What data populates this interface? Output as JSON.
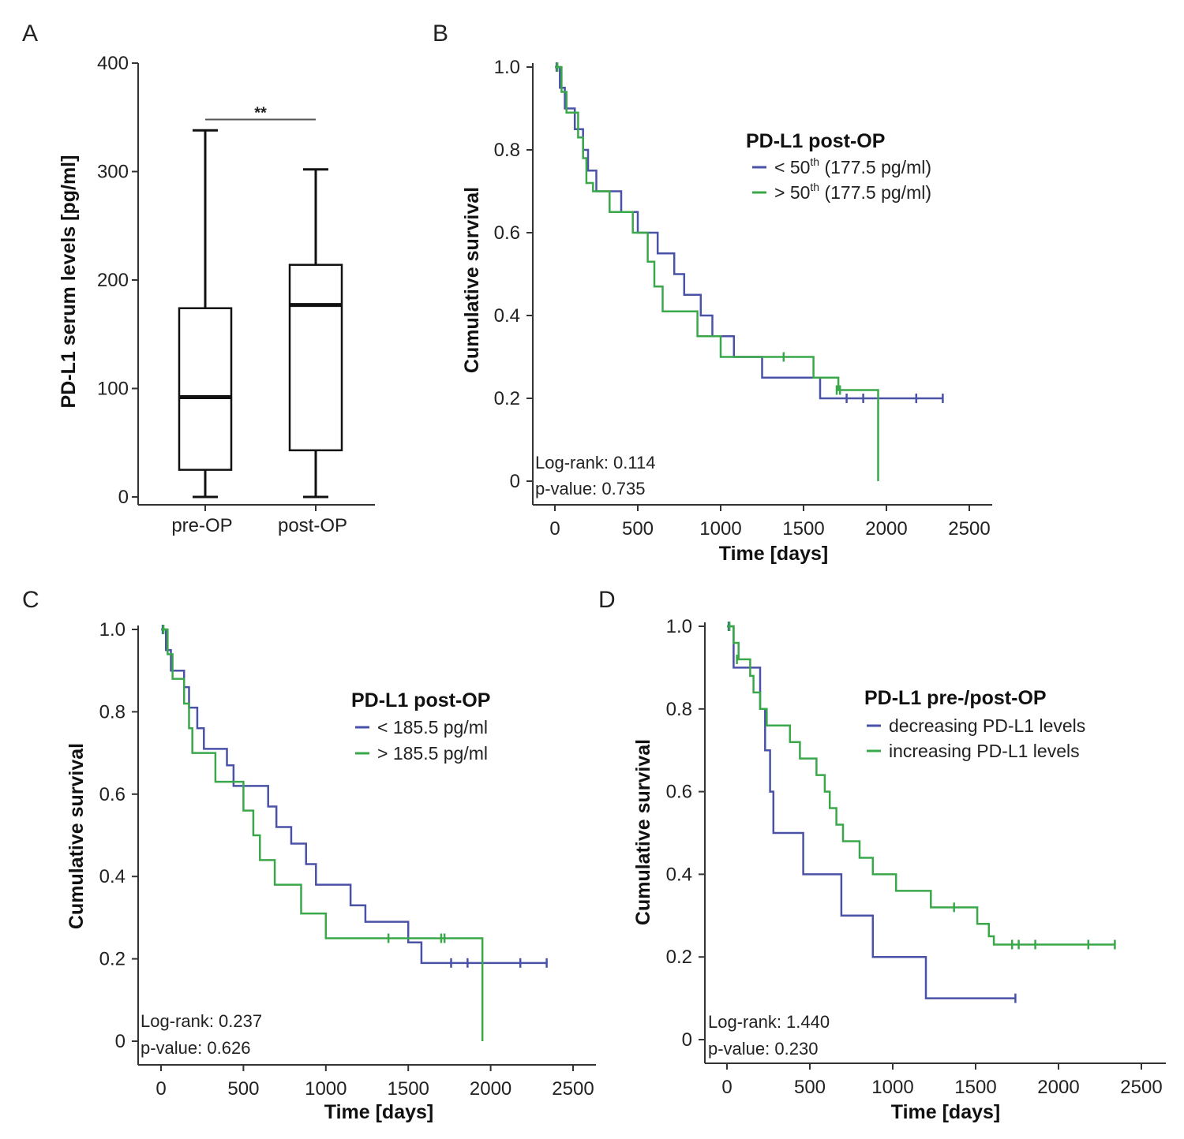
{
  "colors": {
    "blue": "#4a52a8",
    "green": "#3aa84a",
    "axis": "#333333",
    "box": "#111111"
  },
  "chart_data": [
    {
      "id": "A",
      "type": "box",
      "panel_label": "A",
      "ylabel": "PD-L1 serum levels [pg/ml]",
      "ylim": [
        0,
        400
      ],
      "yticks": [
        "0",
        "100",
        "200",
        "300",
        "400"
      ],
      "categories": [
        "pre-OP",
        "post-OP"
      ],
      "boxes": [
        {
          "name": "pre-OP",
          "min": 0,
          "q1": 25,
          "median": 92,
          "q3": 174,
          "max": 338
        },
        {
          "name": "post-OP",
          "min": 0,
          "q1": 43,
          "median": 177,
          "q3": 214,
          "max": 302
        }
      ],
      "significance": {
        "label": "**",
        "y": 348
      }
    },
    {
      "id": "B",
      "type": "line",
      "panel_label": "B",
      "xlabel": "Time [days]",
      "ylabel": "Cumulative survival",
      "xlim": [
        0,
        2500
      ],
      "ylim": [
        0,
        1.0
      ],
      "xticks": [
        "0",
        "500",
        "1000",
        "1500",
        "2000",
        "2500"
      ],
      "yticks": [
        "0",
        "0.2",
        "0.4",
        "0.6",
        "0.8",
        "1.0"
      ],
      "legend_title": "PD-L1 post-OP",
      "legend": [
        {
          "prefix": "< 50",
          "sup": "th",
          "suffix": " (177.5 pg/ml)"
        },
        {
          "prefix": "> 50",
          "sup": "th",
          "suffix": " (177.5 pg/ml)"
        }
      ],
      "stats": [
        "Log-rank: 0.114",
        "p-value: 0.735"
      ],
      "series": [
        {
          "name": "< 50th (177.5 pg/ml)",
          "color": "blue",
          "steps": [
            [
              0,
              1.0
            ],
            [
              30,
              0.95
            ],
            [
              60,
              0.9
            ],
            [
              120,
              0.85
            ],
            [
              170,
              0.8
            ],
            [
              200,
              0.75
            ],
            [
              250,
              0.7
            ],
            [
              400,
              0.65
            ],
            [
              500,
              0.6
            ],
            [
              620,
              0.55
            ],
            [
              720,
              0.5
            ],
            [
              780,
              0.45
            ],
            [
              880,
              0.4
            ],
            [
              950,
              0.35
            ],
            [
              1080,
              0.3
            ],
            [
              1250,
              0.25
            ],
            [
              1600,
              0.2
            ],
            [
              2340,
              0.2
            ]
          ],
          "censor": [
            [
              10,
              1.0
            ],
            [
              1760,
              0.2
            ],
            [
              1860,
              0.2
            ],
            [
              2180,
              0.2
            ],
            [
              2340,
              0.2
            ]
          ]
        },
        {
          "name": "> 50th (177.5 pg/ml)",
          "color": "green",
          "steps": [
            [
              0,
              1.0
            ],
            [
              40,
              0.94
            ],
            [
              70,
              0.89
            ],
            [
              140,
              0.83
            ],
            [
              170,
              0.78
            ],
            [
              190,
              0.72
            ],
            [
              230,
              0.7
            ],
            [
              330,
              0.65
            ],
            [
              470,
              0.6
            ],
            [
              560,
              0.53
            ],
            [
              600,
              0.47
            ],
            [
              650,
              0.41
            ],
            [
              860,
              0.35
            ],
            [
              1000,
              0.3
            ],
            [
              1560,
              0.25
            ],
            [
              1710,
              0.22
            ],
            [
              1950,
              0.0
            ]
          ],
          "censor": [
            [
              15,
              1.0
            ],
            [
              1380,
              0.3
            ],
            [
              1700,
              0.22
            ],
            [
              1720,
              0.22
            ]
          ]
        }
      ]
    },
    {
      "id": "C",
      "type": "line",
      "panel_label": "C",
      "xlabel": "Time [days]",
      "ylabel": "Cumulative survival",
      "xlim": [
        0,
        2500
      ],
      "ylim": [
        0,
        1.0
      ],
      "xticks": [
        "0",
        "500",
        "1000",
        "1500",
        "2000",
        "2500"
      ],
      "yticks": [
        "0",
        "0.2",
        "0.4",
        "0.6",
        "0.8",
        "1.0"
      ],
      "legend_title": "PD-L1 post-OP",
      "legend": [
        {
          "prefix": "< 185.5 pg/ml",
          "sup": "",
          "suffix": ""
        },
        {
          "prefix": "> 185.5 pg/ml",
          "sup": "",
          "suffix": ""
        }
      ],
      "stats": [
        "Log-rank: 0.237",
        "p-value: 0.626"
      ],
      "series": [
        {
          "name": "< 185.5 pg/ml",
          "color": "blue",
          "steps": [
            [
              0,
              1.0
            ],
            [
              30,
              0.95
            ],
            [
              60,
              0.9
            ],
            [
              140,
              0.86
            ],
            [
              170,
              0.81
            ],
            [
              220,
              0.76
            ],
            [
              260,
              0.71
            ],
            [
              400,
              0.67
            ],
            [
              440,
              0.62
            ],
            [
              650,
              0.57
            ],
            [
              700,
              0.52
            ],
            [
              790,
              0.48
            ],
            [
              880,
              0.43
            ],
            [
              940,
              0.38
            ],
            [
              1150,
              0.33
            ],
            [
              1240,
              0.29
            ],
            [
              1500,
              0.24
            ],
            [
              1580,
              0.19
            ],
            [
              2340,
              0.19
            ]
          ],
          "censor": [
            [
              10,
              1.0
            ],
            [
              1760,
              0.19
            ],
            [
              1860,
              0.19
            ],
            [
              2180,
              0.19
            ],
            [
              2340,
              0.19
            ]
          ]
        },
        {
          "name": "> 185.5 pg/ml",
          "color": "green",
          "steps": [
            [
              0,
              1.0
            ],
            [
              40,
              0.94
            ],
            [
              70,
              0.88
            ],
            [
              140,
              0.82
            ],
            [
              170,
              0.76
            ],
            [
              190,
              0.7
            ],
            [
              330,
              0.63
            ],
            [
              500,
              0.56
            ],
            [
              560,
              0.5
            ],
            [
              600,
              0.44
            ],
            [
              690,
              0.38
            ],
            [
              850,
              0.31
            ],
            [
              1000,
              0.25
            ],
            [
              1950,
              0.0
            ]
          ],
          "censor": [
            [
              15,
              1.0
            ],
            [
              1380,
              0.25
            ],
            [
              1700,
              0.25
            ],
            [
              1720,
              0.25
            ]
          ]
        }
      ]
    },
    {
      "id": "D",
      "type": "line",
      "panel_label": "D",
      "xlabel": "Time [days]",
      "ylabel": "Cumulative survival",
      "xlim": [
        0,
        2500
      ],
      "ylim": [
        0,
        1.0
      ],
      "xticks": [
        "0",
        "500",
        "1000",
        "1500",
        "2000",
        "2500"
      ],
      "yticks": [
        "0",
        "0.2",
        "0.4",
        "0.6",
        "0.8",
        "1.0"
      ],
      "legend_title": "PD-L1 pre-/post-OP",
      "legend": [
        {
          "prefix": "decreasing PD-L1 levels",
          "sup": "",
          "suffix": ""
        },
        {
          "prefix": "increasing PD-L1 levels",
          "sup": "",
          "suffix": ""
        }
      ],
      "stats": [
        "Log-rank: 1.440",
        "p-value: 0.230"
      ],
      "series": [
        {
          "name": "decreasing PD-L1 levels",
          "color": "blue",
          "steps": [
            [
              0,
              1.0
            ],
            [
              40,
              0.9
            ],
            [
              200,
              0.8
            ],
            [
              230,
              0.7
            ],
            [
              260,
              0.6
            ],
            [
              280,
              0.5
            ],
            [
              460,
              0.4
            ],
            [
              690,
              0.3
            ],
            [
              880,
              0.2
            ],
            [
              1200,
              0.1
            ],
            [
              1740,
              0.1
            ]
          ],
          "censor": [
            [
              10,
              1.0
            ],
            [
              1740,
              0.1
            ]
          ]
        },
        {
          "name": "increasing PD-L1 levels",
          "color": "green",
          "steps": [
            [
              0,
              1.0
            ],
            [
              40,
              0.96
            ],
            [
              70,
              0.92
            ],
            [
              140,
              0.88
            ],
            [
              160,
              0.84
            ],
            [
              200,
              0.8
            ],
            [
              240,
              0.76
            ],
            [
              380,
              0.72
            ],
            [
              440,
              0.68
            ],
            [
              540,
              0.64
            ],
            [
              590,
              0.6
            ],
            [
              620,
              0.56
            ],
            [
              660,
              0.52
            ],
            [
              700,
              0.48
            ],
            [
              800,
              0.44
            ],
            [
              880,
              0.4
            ],
            [
              1020,
              0.36
            ],
            [
              1230,
              0.32
            ],
            [
              1510,
              0.28
            ],
            [
              1580,
              0.25
            ],
            [
              1610,
              0.23
            ],
            [
              2340,
              0.23
            ]
          ],
          "censor": [
            [
              15,
              1.0
            ],
            [
              60,
              0.92
            ],
            [
              1370,
              0.32
            ],
            [
              1720,
              0.23
            ],
            [
              1760,
              0.23
            ],
            [
              1860,
              0.23
            ],
            [
              2180,
              0.23
            ],
            [
              2340,
              0.23
            ]
          ]
        }
      ]
    }
  ]
}
